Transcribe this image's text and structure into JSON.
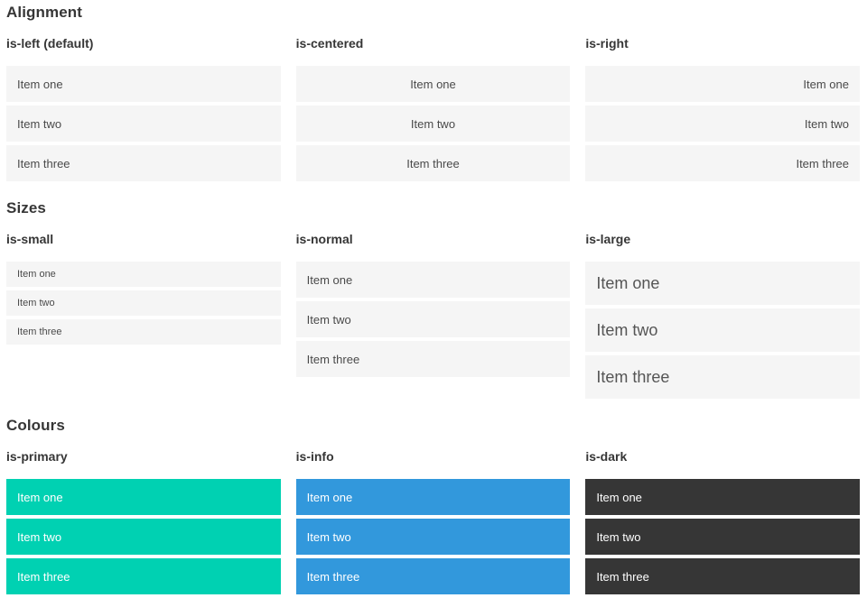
{
  "colors": {
    "primary": "#00d1b2",
    "info": "#3298dc",
    "dark": "#363636",
    "item_background": "#f5f5f5",
    "heading_text": "#363636",
    "item_text": "#4a4a4a"
  },
  "sections": [
    {
      "title": "Alignment",
      "columns": [
        {
          "label": "is-left (default)",
          "variant": "left",
          "items": [
            "Item one",
            "Item two",
            "Item three"
          ]
        },
        {
          "label": "is-centered",
          "variant": "centered",
          "items": [
            "Item one",
            "Item two",
            "Item three"
          ]
        },
        {
          "label": "is-right",
          "variant": "right",
          "items": [
            "Item one",
            "Item two",
            "Item three"
          ]
        }
      ]
    },
    {
      "title": "Sizes",
      "columns": [
        {
          "label": "is-small",
          "variant": "small",
          "items": [
            "Item one",
            "Item two",
            "Item three"
          ]
        },
        {
          "label": "is-normal",
          "variant": "normal",
          "items": [
            "Item one",
            "Item two",
            "Item three"
          ]
        },
        {
          "label": "is-large",
          "variant": "large",
          "items": [
            "Item one",
            "Item two",
            "Item three"
          ]
        }
      ]
    },
    {
      "title": "Colours",
      "columns": [
        {
          "label": "is-primary",
          "variant": "primary",
          "items": [
            "Item one",
            "Item two",
            "Item three"
          ]
        },
        {
          "label": "is-info",
          "variant": "info",
          "items": [
            "Item one",
            "Item two",
            "Item three"
          ]
        },
        {
          "label": "is-dark",
          "variant": "dark",
          "items": [
            "Item one",
            "Item two",
            "Item three"
          ]
        }
      ]
    }
  ]
}
